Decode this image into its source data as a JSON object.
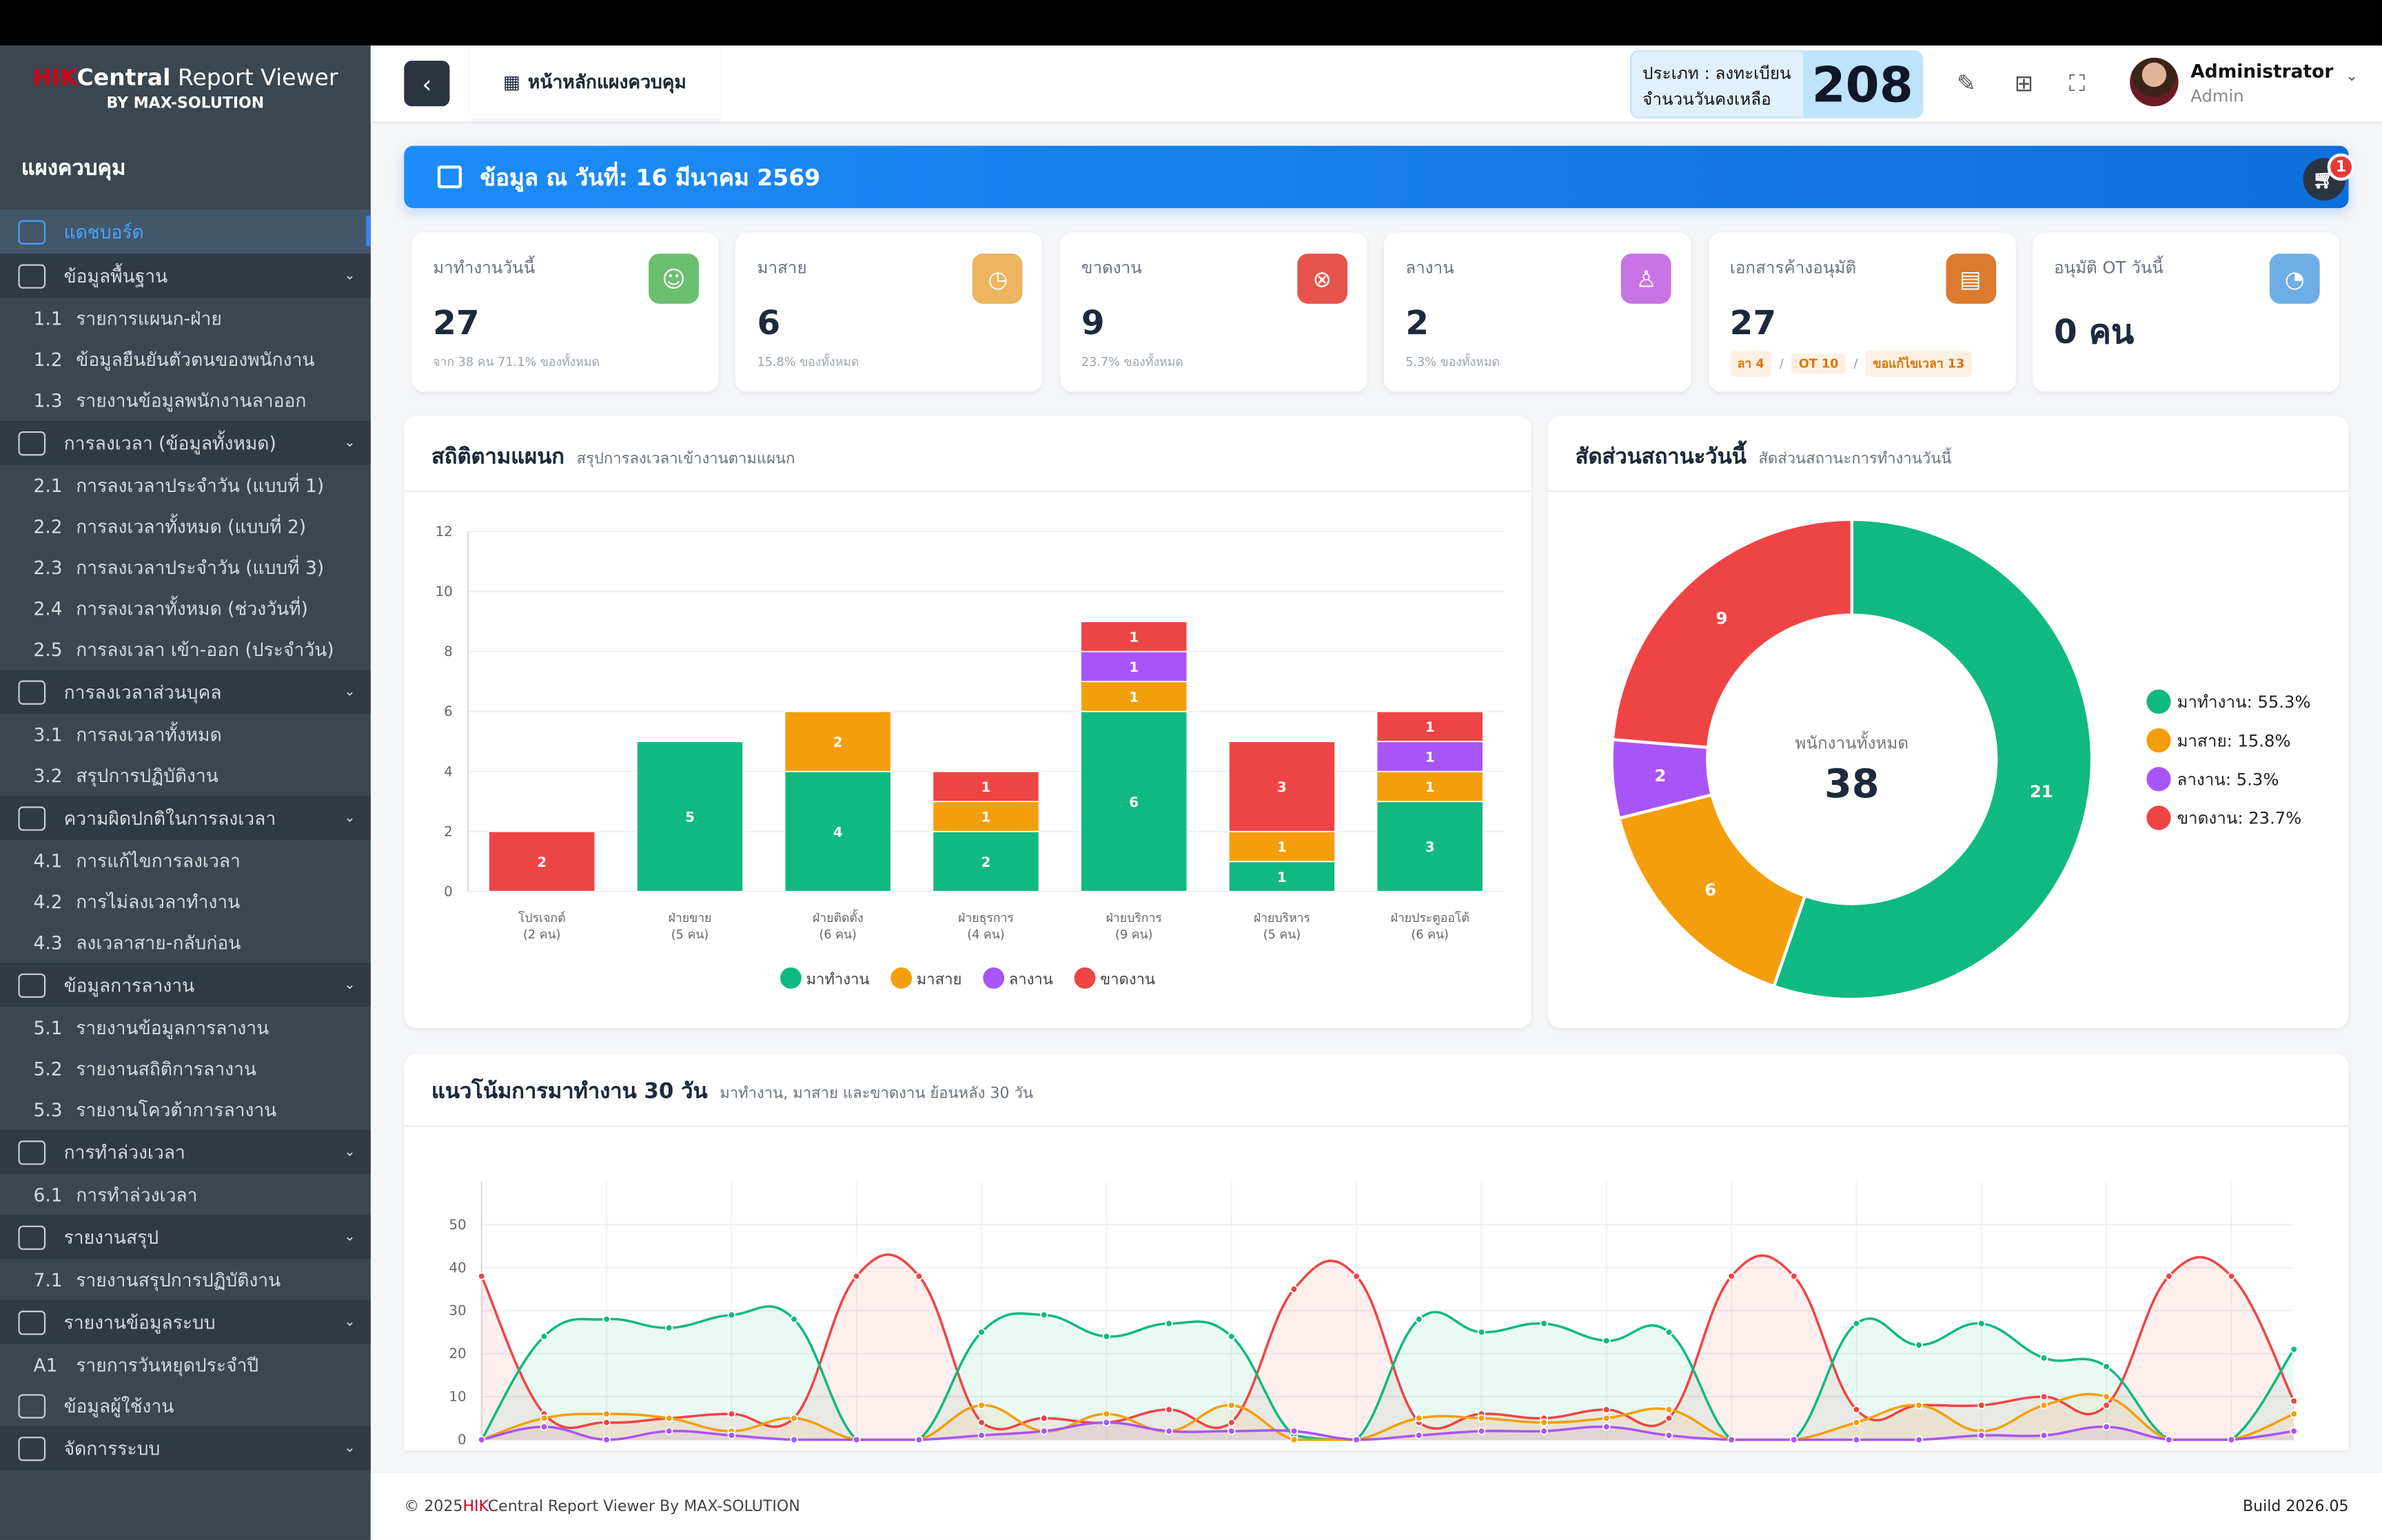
{
  "app": {
    "brand_hik": "HIK",
    "brand_central": "Central",
    "brand_rest": " Report Viewer",
    "by": "BY MAX-SOLUTION"
  },
  "sidebar": {
    "title": "แผงควบคุม",
    "items": [
      {
        "type": "active",
        "label": "แดชบอร์ด",
        "icon": "dashboard-icon"
      },
      {
        "type": "group",
        "label": "ข้อมูลพื้นฐาน",
        "icon": "building-user-icon"
      },
      {
        "type": "sub",
        "num": "1.1",
        "label": "รายการแผนก-ฝ่าย"
      },
      {
        "type": "sub",
        "num": "1.2",
        "label": "ข้อมูลยืนยันตัวตนของพนักงาน"
      },
      {
        "type": "sub",
        "num": "1.3",
        "label": "รายงานข้อมูลพนักงานลาออก"
      },
      {
        "type": "group",
        "label": "การลงเวลา (ข้อมูลทั้งหมด)",
        "icon": "file-chart-icon"
      },
      {
        "type": "sub",
        "num": "2.1",
        "label": "การลงเวลาประจำวัน (แบบที่ 1)"
      },
      {
        "type": "sub",
        "num": "2.2",
        "label": "การลงเวลาทั้งหมด (แบบที่ 2)"
      },
      {
        "type": "sub",
        "num": "2.3",
        "label": "การลงเวลาประจำวัน (แบบที่ 3)"
      },
      {
        "type": "sub",
        "num": "2.4",
        "label": "การลงเวลาทั้งหมด (ช่วงวันที่)"
      },
      {
        "type": "sub",
        "num": "2.5",
        "label": "การลงเวลา เข้า-ออก (ประจำวัน)"
      },
      {
        "type": "group",
        "label": "การลงเวลาส่วนบุคล",
        "icon": "list-card-icon"
      },
      {
        "type": "sub",
        "num": "3.1",
        "label": "การลงเวลาทั้งหมด"
      },
      {
        "type": "sub",
        "num": "3.2",
        "label": "สรุปการปฏิบัติงาน"
      },
      {
        "type": "group",
        "label": "ความผิดปกติในการลงเวลา",
        "icon": "file-x-icon"
      },
      {
        "type": "sub",
        "num": "4.1",
        "label": "การแก้ไขการลงเวลา"
      },
      {
        "type": "sub",
        "num": "4.2",
        "label": "การไม่ลงเวลาทำงาน"
      },
      {
        "type": "sub",
        "num": "4.3",
        "label": "ลงเวลาสาย-กลับก่อน"
      },
      {
        "type": "group",
        "label": "ข้อมูลการลางาน",
        "icon": "leave-icon"
      },
      {
        "type": "sub",
        "num": "5.1",
        "label": "รายงานข้อมูลการลางาน"
      },
      {
        "type": "sub",
        "num": "5.2",
        "label": "รายงานสถิติการลางาน"
      },
      {
        "type": "sub",
        "num": "5.3",
        "label": "รายงานโควต้าการลางาน"
      },
      {
        "type": "group",
        "label": "การทำล่วงเวลา",
        "icon": "calendar-clock-icon"
      },
      {
        "type": "sub",
        "num": "6.1",
        "label": "การทำล่วงเวลา"
      },
      {
        "type": "group",
        "label": "รายงานสรุป",
        "icon": "file-chart-icon"
      },
      {
        "type": "sub",
        "num": "7.1",
        "label": "รายงานสรุปการปฏิบัติงาน"
      },
      {
        "type": "group",
        "label": "รายงานข้อมูลระบบ",
        "icon": "calendar-star-icon"
      },
      {
        "type": "sub",
        "num": "A1",
        "label": "รายการวันหยุดประจำปี"
      },
      {
        "type": "plain",
        "label": "ข้อมูลผู้ใช้งาน",
        "icon": "building-user-icon"
      },
      {
        "type": "group",
        "label": "จัดการระบบ",
        "icon": "shield-icon"
      }
    ]
  },
  "header": {
    "tab_label": "หน้าหลักแผงควบคุม",
    "license_type": "ประเภท : ลงทะเบียน",
    "license_days_label": "จำนวนวันคงเหลือ",
    "license_days": "208",
    "user_name": "Administrator",
    "user_role": "Admin"
  },
  "banner": {
    "text": "ข้อมูล ณ วันที่: 16 มีนาคม 2569",
    "cart_badge": "1"
  },
  "stats": [
    {
      "label": "มาทำงานวันนี้",
      "value": "27",
      "sub": "จาก 38 คน 71.1% ของทั้งหมด",
      "color": "#6cbf6f",
      "icon": "users-icon",
      "glyph": "☺"
    },
    {
      "label": "มาสาย",
      "value": "6",
      "sub": "15.8% ของทั้งหมด",
      "color": "#ecb55e",
      "icon": "clock-icon",
      "glyph": "◷"
    },
    {
      "label": "ขาดงาน",
      "value": "9",
      "sub": "23.7% ของทั้งหมด",
      "color": "#e5534b",
      "icon": "x-circle-icon",
      "glyph": "⊗"
    },
    {
      "label": "ลางาน",
      "value": "2",
      "sub": "5.3% ของทั้งหมด",
      "color": "#c874e6",
      "icon": "user-icon",
      "glyph": "♙"
    },
    {
      "label": "เอกสารค้างอนุมัติ",
      "value": "27",
      "sub": "",
      "color": "#dc7b2e",
      "icon": "document-icon",
      "glyph": "▤",
      "chips": [
        "ลา 4",
        "OT 10",
        "ขอแก้ไขเวลา 13"
      ]
    },
    {
      "label": "อนุมัติ OT วันนี้",
      "value": "0 คน",
      "sub": "",
      "color": "#6eaee6",
      "icon": "clock-history-icon",
      "glyph": "◔"
    }
  ],
  "bar_card": {
    "title": "สถิติตามแผนก",
    "subtitle": "สรุปการลงเวลาเข้างานตามแผนก"
  },
  "donut_card": {
    "title": "สัดส่วนสถานะวันนี้",
    "subtitle": "สัดส่วนสถานะการทำงานวันนี้"
  },
  "line_card": {
    "title": "แนวโน้มการมาทำงาน 30 วัน",
    "subtitle": "มาทำงาน, มาสาย และขาดงาน ย้อนหลัง 30 วัน"
  },
  "footer": {
    "copy": "© 2025",
    "hik": "HIK",
    "rest": "Central Report Viewer By MAX-SOLUTION",
    "build": "Build 2026.05"
  },
  "chart_data": [
    {
      "type": "bar",
      "stacked": true,
      "categories": [
        "โปรเจกต์\n(2 คน)",
        "ฝ่ายขาย\n(5 คน)",
        "ฝ่ายติดตั้ง\n(6 คน)",
        "ฝ่ายธุรการ\n(4 คน)",
        "ฝ่ายบริการ\n(9 คน)",
        "ฝ่ายบริหาร\n(5 คน)",
        "ฝ่ายประตูออโต้\n(6 คน)"
      ],
      "series": [
        {
          "name": "มาทำงาน",
          "color": "#10b981",
          "values": [
            0,
            5,
            4,
            2,
            6,
            1,
            3
          ]
        },
        {
          "name": "มาสาย",
          "color": "#f59e0b",
          "values": [
            0,
            0,
            2,
            1,
            1,
            1,
            1
          ]
        },
        {
          "name": "ลางาน",
          "color": "#a855f7",
          "values": [
            0,
            0,
            0,
            0,
            1,
            0,
            1
          ]
        },
        {
          "name": "ขาดงาน",
          "color": "#ef4444",
          "values": [
            2,
            0,
            0,
            1,
            1,
            3,
            1
          ]
        }
      ],
      "ylim": [
        0,
        12
      ],
      "yticks": [
        0,
        2,
        4,
        6,
        8,
        10,
        12
      ],
      "grid": true,
      "legend": "bottom"
    },
    {
      "type": "pie",
      "donut": true,
      "center_label": "พนักงานทั้งหมด",
      "center_value": "38",
      "slices": [
        {
          "name": "มาทำงาน",
          "value": 21,
          "legend": "มาทำงาน: 55.3%",
          "color": "#10b981"
        },
        {
          "name": "มาสาย",
          "value": 6,
          "legend": "มาสาย: 15.8%",
          "color": "#f59e0b"
        },
        {
          "name": "ลางาน",
          "value": 2,
          "legend": "ลางาน: 5.3%",
          "color": "#a855f7"
        },
        {
          "name": "ขาดงาน",
          "value": 9,
          "legend": "ขาดงาน: 23.7%",
          "color": "#ef4444"
        }
      ],
      "legend": "right"
    },
    {
      "type": "area",
      "smooth": true,
      "ylim": [
        0,
        60
      ],
      "yticks": [
        0,
        10,
        20,
        30,
        40,
        50
      ],
      "grid": true,
      "series": [
        {
          "name": "มาทำงาน",
          "color": "#10b981",
          "values": [
            0,
            24,
            28,
            26,
            29,
            28,
            0,
            0,
            25,
            29,
            24,
            27,
            24,
            1,
            0,
            28,
            25,
            27,
            23,
            25,
            0,
            0,
            27,
            22,
            27,
            19,
            17,
            0,
            0,
            21
          ]
        },
        {
          "name": "มาสาย",
          "color": "#f59e0b",
          "values": [
            0,
            5,
            6,
            5,
            2,
            5,
            0,
            0,
            8,
            2,
            6,
            2,
            8,
            0,
            0,
            5,
            5,
            4,
            5,
            7,
            0,
            0,
            4,
            8,
            2,
            8,
            10,
            0,
            0,
            6
          ]
        },
        {
          "name": "ลางาน",
          "color": "#a855f7",
          "values": [
            0,
            3,
            0,
            2,
            1,
            0,
            0,
            0,
            1,
            2,
            4,
            2,
            2,
            2,
            0,
            1,
            2,
            2,
            3,
            1,
            0,
            0,
            0,
            0,
            1,
            1,
            3,
            0,
            0,
            2
          ]
        },
        {
          "name": "ขาดงาน",
          "color": "#ef4444",
          "values": [
            38,
            6,
            4,
            5,
            6,
            5,
            38,
            38,
            4,
            5,
            4,
            7,
            4,
            35,
            38,
            4,
            6,
            5,
            7,
            5,
            38,
            38,
            7,
            8,
            8,
            10,
            8,
            38,
            38,
            9
          ]
        }
      ]
    }
  ]
}
